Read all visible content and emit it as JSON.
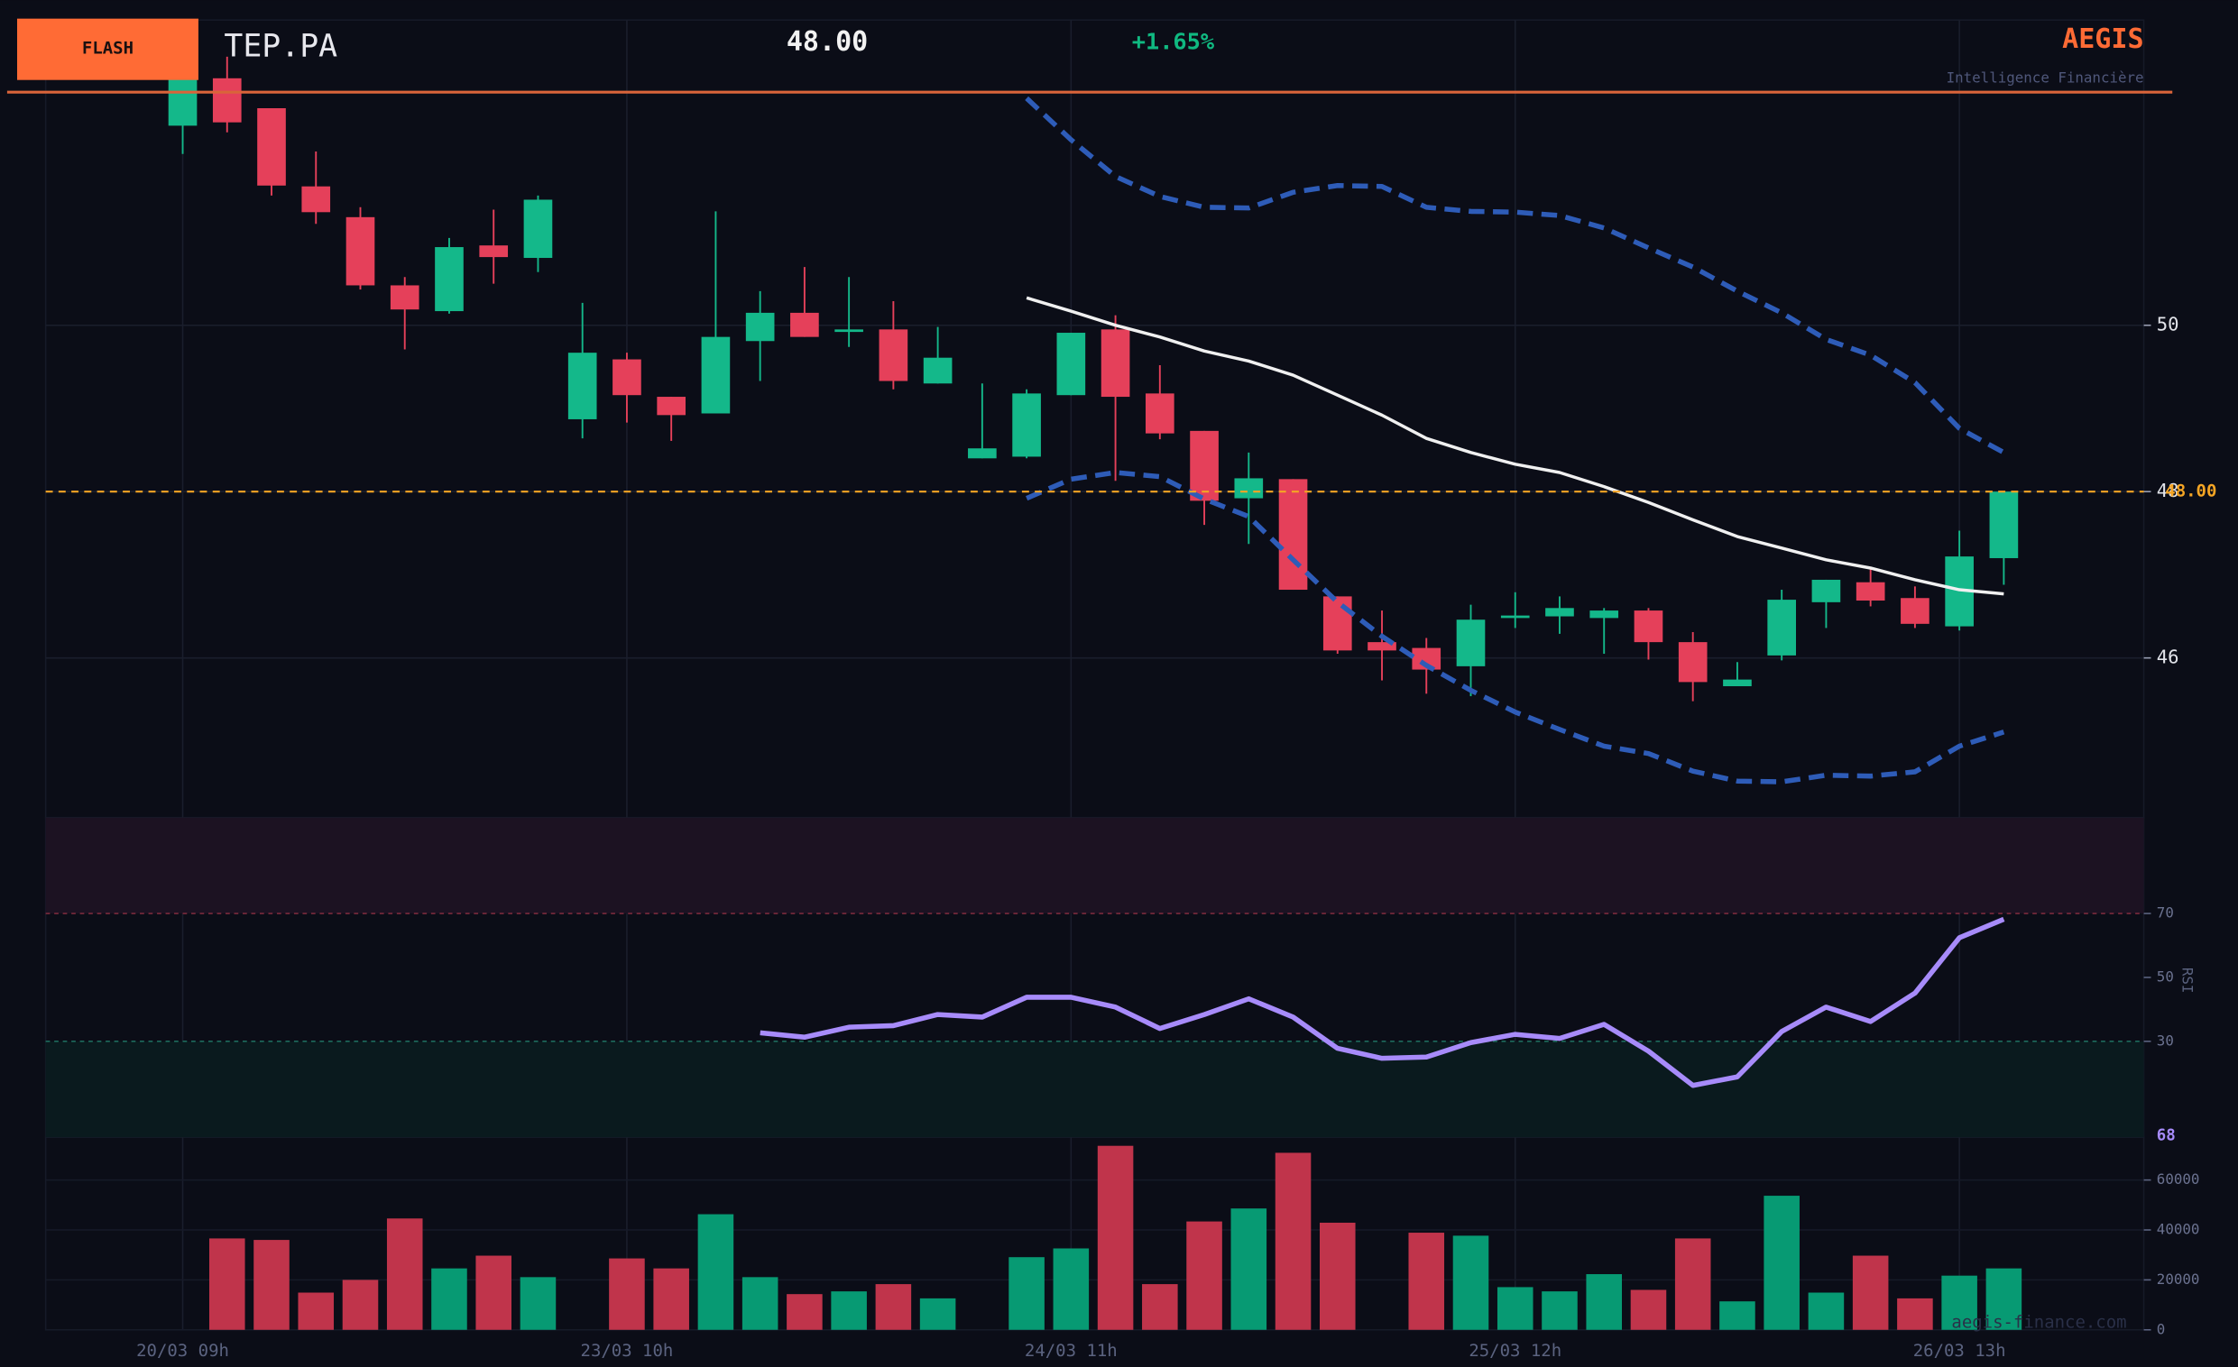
{
  "header": {
    "badge": "FLASH",
    "ticker": "TEP.PA",
    "price": "48.00",
    "change": "+1.65%",
    "brand": "AEGIS",
    "tagline": "Intelligence Financière",
    "watermark": "aegis-finance.com"
  },
  "chart_data": [
    {
      "type": "candlestick",
      "categories": [
        "20/03 09h",
        null,
        null,
        null,
        null,
        null,
        null,
        null,
        null,
        null,
        "23/03 10h",
        null,
        null,
        null,
        null,
        null,
        null,
        null,
        null,
        null,
        "24/03 11h",
        null,
        null,
        null,
        null,
        null,
        null,
        null,
        null,
        null,
        "25/03 12h",
        null,
        null,
        null,
        null,
        null,
        null,
        null,
        null,
        null,
        "26/03 13h",
        null
      ],
      "open": [
        52.4,
        52.97,
        52.61,
        51.67,
        51.3,
        50.48,
        50.17,
        50.96,
        50.81,
        48.87,
        49.59,
        49.14,
        48.94,
        49.81,
        50.15,
        49.92,
        49.95,
        49.3,
        48.4,
        48.42,
        49.16,
        49.95,
        49.18,
        48.73,
        47.92,
        48.15,
        46.74,
        46.19,
        46.12,
        45.9,
        46.48,
        46.5,
        46.48,
        46.57,
        46.19,
        45.66,
        46.03,
        46.67,
        46.91,
        46.72,
        46.38,
        47.2
      ],
      "high": [
        53.23,
        53.23,
        52.61,
        52.09,
        51.42,
        50.58,
        51.05,
        51.39,
        51.56,
        50.27,
        49.67,
        49.14,
        51.37,
        50.41,
        50.7,
        50.58,
        50.29,
        49.98,
        49.3,
        49.23,
        49.91,
        50.12,
        49.52,
        48.73,
        48.47,
        48.15,
        46.74,
        46.57,
        46.24,
        46.64,
        46.79,
        46.74,
        46.6,
        46.6,
        46.31,
        45.95,
        46.82,
        46.94,
        47.08,
        46.86,
        47.53,
        48.0
      ],
      "low": [
        52.06,
        52.32,
        51.56,
        51.22,
        50.43,
        49.71,
        50.14,
        50.5,
        50.64,
        48.64,
        48.83,
        48.61,
        48.94,
        49.33,
        49.86,
        49.74,
        49.23,
        49.3,
        48.4,
        48.4,
        49.16,
        48.13,
        48.63,
        47.6,
        47.37,
        46.82,
        46.05,
        45.73,
        45.57,
        45.54,
        46.36,
        46.29,
        46.05,
        45.98,
        45.48,
        45.66,
        45.97,
        46.36,
        46.62,
        46.36,
        46.33,
        46.88
      ],
      "close": [
        52.97,
        52.44,
        51.68,
        51.36,
        50.48,
        50.19,
        50.94,
        50.82,
        51.51,
        49.67,
        49.16,
        48.92,
        49.86,
        50.15,
        49.86,
        49.95,
        49.33,
        49.61,
        48.52,
        49.18,
        49.91,
        49.14,
        48.7,
        47.89,
        48.16,
        46.82,
        46.09,
        46.09,
        45.86,
        46.46,
        46.51,
        46.6,
        46.57,
        46.19,
        45.71,
        45.74,
        46.7,
        46.94,
        46.69,
        46.41,
        47.22,
        48.0
      ],
      "up_color": "#14b88a",
      "down_color": "#e5405a",
      "overlays": [
        {
          "color": "#2e5cb8",
          "style": "dashed",
          "values": [
            null,
            null,
            null,
            null,
            null,
            null,
            null,
            null,
            null,
            null,
            null,
            null,
            null,
            null,
            null,
            null,
            null,
            null,
            null,
            52.73,
            52.23,
            51.79,
            51.55,
            51.42,
            51.41,
            51.6,
            51.68,
            51.67,
            51.42,
            51.37,
            51.36,
            51.32,
            51.17,
            50.93,
            50.7,
            50.41,
            50.15,
            49.83,
            49.64,
            49.31,
            48.76,
            48.47
          ]
        },
        {
          "color": "#f0f0f0",
          "style": "solid",
          "values": [
            null,
            null,
            null,
            null,
            null,
            null,
            null,
            null,
            null,
            null,
            null,
            null,
            null,
            null,
            null,
            null,
            null,
            null,
            null,
            50.33,
            50.17,
            50.0,
            49.86,
            49.69,
            49.57,
            49.4,
            49.16,
            48.92,
            48.64,
            48.47,
            48.33,
            48.23,
            48.06,
            47.87,
            47.66,
            47.46,
            47.32,
            47.18,
            47.08,
            46.94,
            46.82,
            46.77
          ]
        },
        {
          "color": "#2e5cb8",
          "style": "dashed",
          "values": [
            null,
            null,
            null,
            null,
            null,
            null,
            null,
            null,
            null,
            null,
            null,
            null,
            null,
            null,
            null,
            null,
            null,
            null,
            null,
            47.92,
            48.15,
            48.23,
            48.18,
            47.91,
            47.7,
            47.18,
            46.67,
            46.26,
            45.91,
            45.61,
            45.35,
            45.14,
            44.94,
            44.85,
            44.64,
            44.52,
            44.51,
            44.59,
            44.58,
            44.63,
            44.94,
            45.11
          ]
        }
      ],
      "last_price": {
        "value": 48.0,
        "label": "48.00",
        "color": "#f5a524"
      },
      "ylim": [
        44.08,
        53.67
      ],
      "yticks": [
        46,
        48,
        50
      ],
      "grid": true
    },
    {
      "type": "line",
      "title": "RSI",
      "color": "#a78bfa",
      "values": [
        null,
        null,
        null,
        null,
        null,
        null,
        null,
        null,
        null,
        null,
        null,
        null,
        null,
        32.7,
        31.3,
        34.4,
        34.9,
        38.4,
        37.6,
        43.8,
        43.8,
        40.7,
        34.0,
        38.4,
        43.3,
        37.6,
        27.8,
        24.7,
        25.1,
        29.6,
        32.2,
        30.9,
        35.3,
        26.9,
        16.2,
        18.9,
        33.1,
        40.7,
        36.2,
        45.1,
        62.4,
        68.2
      ],
      "current_value": 68,
      "overbought": 70,
      "oversold": 30,
      "overbought_color": "#1c1222",
      "oversold_color": "#0a1a1e",
      "ylim": [
        0,
        100
      ],
      "yticks": [
        30,
        50,
        70
      ]
    },
    {
      "type": "bar",
      "values": [
        null,
        36600,
        36000,
        14900,
        20000,
        44600,
        24600,
        29700,
        21100,
        null,
        28600,
        24600,
        46300,
        21100,
        14300,
        15400,
        18300,
        12600,
        null,
        29100,
        32600,
        73700,
        18300,
        43400,
        48600,
        70900,
        42900,
        null,
        38900,
        37700,
        17100,
        15400,
        22300,
        16000,
        36600,
        11400,
        53700,
        14900,
        29700,
        12600,
        21700,
        24600
      ],
      "up_color": "#079a73",
      "down_color": "#c0344b",
      "ylim": [
        0,
        77143
      ],
      "yticks": [
        0,
        20000,
        40000,
        60000
      ],
      "grid": true
    }
  ]
}
